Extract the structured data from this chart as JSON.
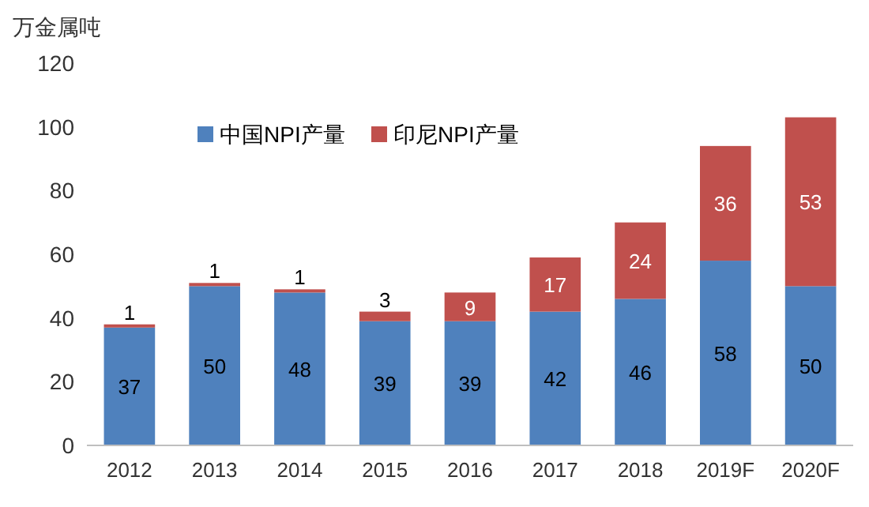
{
  "chart_data": {
    "type": "bar",
    "ylabel": "万金属吨",
    "categories": [
      "2012",
      "2013",
      "2014",
      "2015",
      "2016",
      "2017",
      "2018",
      "2019F",
      "2020F"
    ],
    "series": [
      {
        "name": "中国NPI产量",
        "color": "#4f81bd",
        "values": [
          37,
          50,
          48,
          39,
          39,
          42,
          46,
          58,
          50
        ]
      },
      {
        "name": "印尼NPI产量",
        "color": "#c0504d",
        "values": [
          1,
          1,
          1,
          3,
          9,
          17,
          24,
          36,
          53
        ]
      }
    ],
    "stacked": true,
    "ylim": [
      0,
      120
    ],
    "yticks": [
      0,
      20,
      40,
      60,
      80,
      100,
      120
    ],
    "data_labels": true,
    "legend": "top left"
  }
}
